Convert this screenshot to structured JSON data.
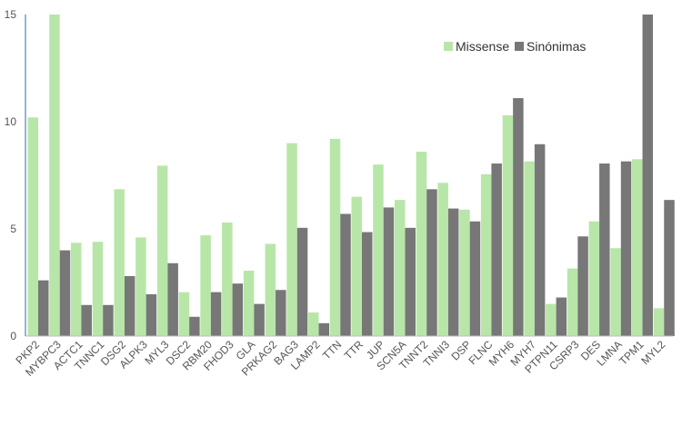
{
  "chart_data": {
    "type": "bar",
    "title": "",
    "xlabel": "",
    "ylabel": "",
    "ylim": [
      0,
      15
    ],
    "yticks": [
      0,
      5,
      10,
      15
    ],
    "grid": false,
    "legend_position": "top-right",
    "categories": [
      "PKP2",
      "MYBPC3",
      "ACTC1",
      "TNNC1",
      "DSG2",
      "ALPK3",
      "MYL3",
      "DSC2",
      "RBM20",
      "FHOD3",
      "GLA",
      "PRKAG2",
      "BAG3",
      "LAMP2",
      "TTN",
      "TTR",
      "JUP",
      "SCN5A",
      "TNNT2",
      "TNNI3",
      "DSP",
      "FLNC",
      "MYH6",
      "MYH7",
      "PTPN11",
      "CSRP3",
      "DES",
      "LMNA",
      "TPM1",
      "MYL2"
    ],
    "series": [
      {
        "name": "Missense",
        "color": "#b8e6a8",
        "values": [
          10.2,
          15.0,
          4.35,
          4.4,
          6.85,
          4.6,
          7.95,
          2.05,
          4.7,
          5.3,
          3.05,
          4.3,
          9.0,
          1.1,
          9.2,
          6.5,
          8.0,
          6.35,
          8.6,
          7.15,
          5.9,
          7.55,
          10.3,
          8.15,
          1.5,
          3.15,
          5.35,
          4.1,
          8.25,
          1.3
        ]
      },
      {
        "name": "Sinónimas",
        "color": "#777777",
        "values": [
          2.6,
          4.0,
          1.45,
          1.45,
          2.8,
          1.95,
          3.4,
          0.9,
          2.05,
          2.45,
          1.5,
          2.15,
          5.05,
          0.6,
          5.7,
          4.85,
          6.0,
          5.05,
          6.85,
          5.95,
          5.35,
          8.05,
          11.1,
          8.95,
          1.8,
          4.65,
          8.05,
          8.15,
          15.0,
          6.35
        ]
      }
    ]
  }
}
